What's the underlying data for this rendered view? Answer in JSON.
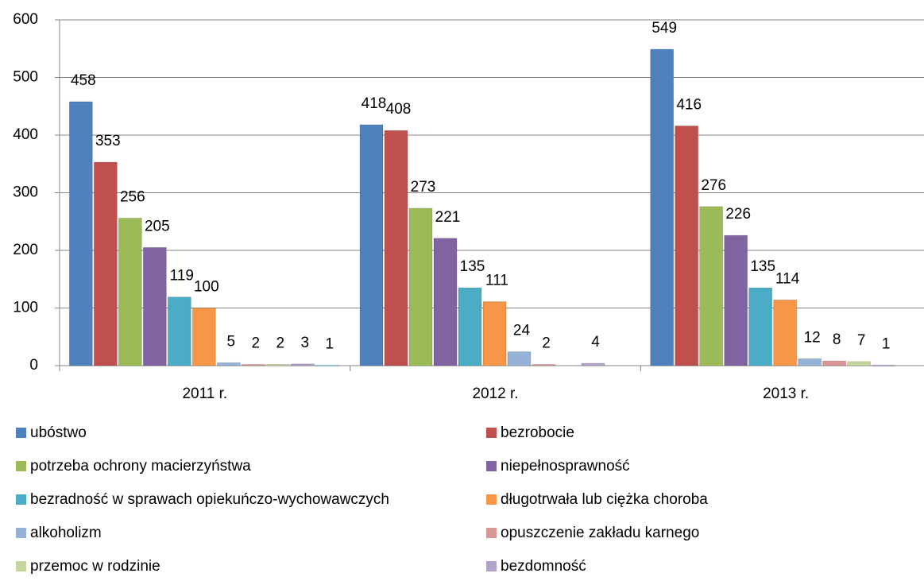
{
  "chart_data": {
    "type": "bar",
    "categories": [
      "2011 r.",
      "2012 r.",
      "2013 r."
    ],
    "series": [
      {
        "name": "ubóstwo",
        "color": "#4f81bd",
        "values": [
          458,
          418,
          549
        ]
      },
      {
        "name": "bezrobocie",
        "color": "#c0504d",
        "values": [
          353,
          408,
          416
        ]
      },
      {
        "name": "potrzeba ochrony macierzyństwa",
        "color": "#9bbb59",
        "values": [
          256,
          273,
          276
        ]
      },
      {
        "name": "niepełnosprawność",
        "color": "#8064a2",
        "values": [
          205,
          221,
          226
        ]
      },
      {
        "name": "bezradność w sprawach opiekuńczo-wychowawczych",
        "color": "#4bacc6",
        "values": [
          119,
          135,
          135
        ]
      },
      {
        "name": "długotrwała lub ciężka choroba",
        "color": "#f79646",
        "values": [
          100,
          111,
          114
        ]
      },
      {
        "name": "alkoholizm",
        "color": "#95b3d7",
        "values": [
          5,
          24,
          12
        ]
      },
      {
        "name": "opuszczenie zakładu karnego",
        "color": "#d99694",
        "values": [
          2,
          2,
          8
        ]
      },
      {
        "name": "przemoc w rodzinie",
        "color": "#c3d69b",
        "values": [
          2,
          null,
          7
        ]
      },
      {
        "name": "bezdomność",
        "color": "#b3a2c7",
        "values": [
          3,
          4,
          1
        ]
      },
      {
        "color": "#93cddd",
        "values": [
          1,
          null,
          null
        ]
      }
    ],
    "ylim": [
      0,
      600
    ],
    "yticks": [
      0,
      100,
      200,
      300,
      400,
      500,
      600
    ],
    "grid": true
  }
}
